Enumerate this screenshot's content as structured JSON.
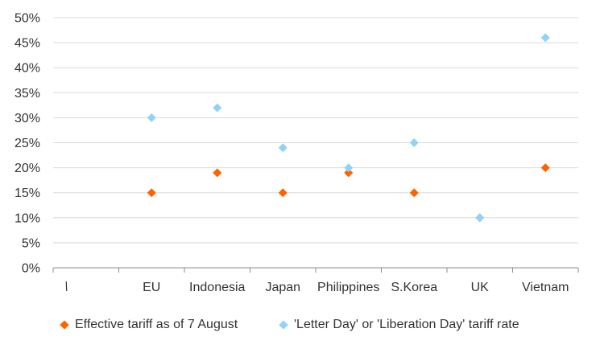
{
  "chart_data": {
    "type": "scatter",
    "categories": [
      "",
      "EU",
      "Indonesia",
      "Japan",
      "Philippines",
      "S.Korea",
      "UK",
      "Vietnam"
    ],
    "series": [
      {
        "name": "Effective tariff as of 7 August",
        "color": "#FF6200",
        "marker": "diamond",
        "values": [
          null,
          15,
          19,
          15,
          19,
          15,
          10,
          20
        ]
      },
      {
        "name": "'Letter Day' or 'Liberation Day' tariff rate",
        "color": "#8FD3F7",
        "marker": "diamond",
        "values": [
          null,
          30,
          32,
          24,
          20,
          25,
          10,
          46
        ]
      }
    ],
    "ylim": [
      0,
      50
    ],
    "y_ticks": [
      "0%",
      "5%",
      "10%",
      "15%",
      "20%",
      "25%",
      "30%",
      "35%",
      "40%",
      "45%",
      "50%"
    ],
    "y_format": "percent",
    "grid": true,
    "legend": "bottom"
  }
}
